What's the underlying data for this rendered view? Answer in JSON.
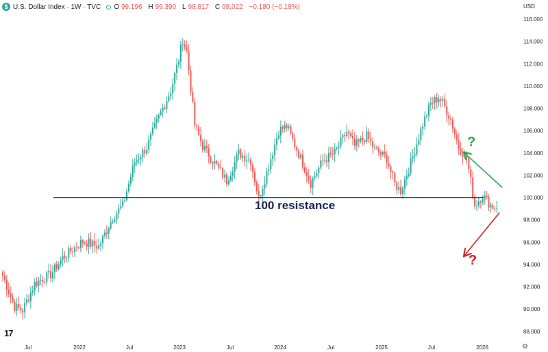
{
  "header": {
    "logo_glyph": "$",
    "title": "U.S. Dollar Index · 1W · TVC",
    "o_label": "O",
    "o_value": "99.196",
    "h_label": "H",
    "h_value": "99.390",
    "l_label": "L",
    "l_value": "98.817",
    "c_label": "C",
    "c_value": "99.022",
    "change": "−0.180 (−0.18%)",
    "currency": "USD"
  },
  "colors": {
    "up": "#26a69a",
    "down": "#ef5350",
    "line": "#0f1d4a",
    "green_arrow": "#1aa64a",
    "red_arrow": "#d01818"
  },
  "annotation": {
    "label": "100 resistance",
    "q_up": "?",
    "q_down": "?"
  },
  "tv_logo": "17",
  "settings_icon": "⚙",
  "chart_data": {
    "type": "candlestick",
    "interval": "1W",
    "y_axis_ticks": [
      "116.000",
      "114.000",
      "112.000",
      "110.000",
      "108.000",
      "106.000",
      "104.000",
      "102.000",
      "100.000",
      "98.000",
      "96.000",
      "94.000",
      "92.000",
      "90.000",
      "88.000"
    ],
    "x_axis_ticks": [
      "Jul",
      "2022",
      "Jul",
      "2023",
      "Jul",
      "2024",
      "Jul",
      "2025",
      "Jul",
      "2026"
    ],
    "ylim": [
      87,
      117
    ],
    "resistance_level": 100.0,
    "price_path_weekly_closes": [
      [
        0,
        93.0
      ],
      [
        6,
        90.2
      ],
      [
        10,
        89.9
      ],
      [
        16,
        92.3
      ],
      [
        24,
        93.1
      ],
      [
        30,
        94.6
      ],
      [
        40,
        96.1
      ],
      [
        48,
        95.6
      ],
      [
        55,
        98.2
      ],
      [
        60,
        99.3
      ],
      [
        66,
        103.2
      ],
      [
        72,
        104.5
      ],
      [
        78,
        107.2
      ],
      [
        84,
        109.6
      ],
      [
        88,
        112.4
      ],
      [
        90,
        114.2
      ],
      [
        92,
        113.1
      ],
      [
        96,
        106.5
      ],
      [
        100,
        104.6
      ],
      [
        106,
        103.1
      ],
      [
        112,
        101.5
      ],
      [
        118,
        104.0
      ],
      [
        124,
        103.3
      ],
      [
        128,
        99.9
      ],
      [
        132,
        102.3
      ],
      [
        138,
        106.0
      ],
      [
        142,
        106.4
      ],
      [
        150,
        103.1
      ],
      [
        154,
        101.3
      ],
      [
        160,
        103.3
      ],
      [
        166,
        104.0
      ],
      [
        172,
        105.9
      ],
      [
        176,
        104.6
      ],
      [
        182,
        105.5
      ],
      [
        186,
        104.3
      ],
      [
        192,
        103.5
      ],
      [
        196,
        101.2
      ],
      [
        199,
        100.6
      ],
      [
        204,
        103.1
      ],
      [
        210,
        106.6
      ],
      [
        214,
        108.4
      ],
      [
        218,
        109.0
      ],
      [
        220,
        108.5
      ],
      [
        224,
        107.0
      ],
      [
        228,
        104.5
      ],
      [
        232,
        103.6
      ],
      [
        236,
        99.3
      ],
      [
        240,
        100.2
      ],
      [
        244,
        99.3
      ],
      [
        247,
        99.02
      ]
    ],
    "projection": {
      "up_target": 104.0,
      "down_target": 94.8
    }
  }
}
